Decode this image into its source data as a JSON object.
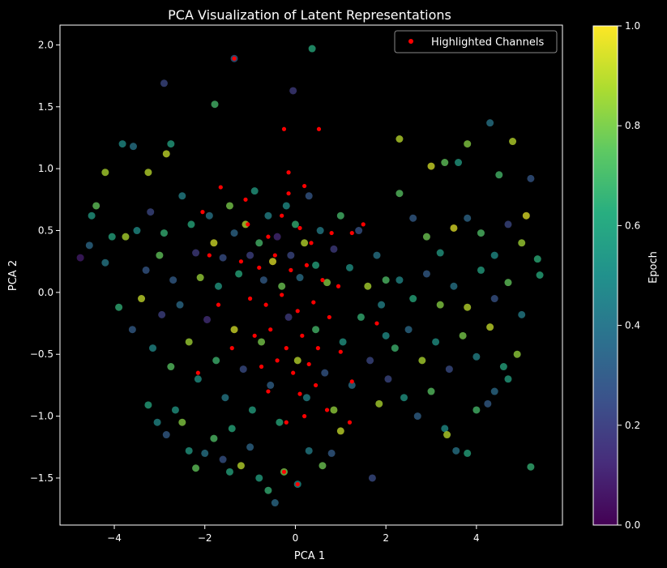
{
  "chart_data": {
    "type": "scatter",
    "title": "PCA Visualization of Latent Representations",
    "xlabel": "PCA 1",
    "ylabel": "PCA 2",
    "xlim": [
      -5.2,
      5.9
    ],
    "ylim": [
      -1.88,
      2.16
    ],
    "xticks": [
      -4,
      -2,
      0,
      2,
      4
    ],
    "xtick_labels": [
      "−4",
      "−2",
      "0",
      "2",
      "4"
    ],
    "yticks": [
      -1.5,
      -1.0,
      -0.5,
      0.0,
      0.5,
      1.0,
      1.5,
      2.0
    ],
    "ytick_labels": [
      "−1.5",
      "−1.0",
      "−0.5",
      "0.0",
      "0.5",
      "1.0",
      "1.5",
      "2.0"
    ],
    "grid": false,
    "legend": {
      "position": "top-right",
      "entries": [
        "Highlighted Channels"
      ]
    },
    "colorbar": {
      "label": "Epoch",
      "range": [
        0.0,
        1.0
      ],
      "ticks": [
        0.0,
        0.2,
        0.4,
        0.6,
        0.8,
        1.0
      ],
      "tick_labels": [
        "0.0",
        "0.2",
        "0.4",
        "0.6",
        "0.8",
        "1.0"
      ],
      "colormap": "viridis"
    },
    "series": [
      {
        "name": "Epoch",
        "kind": "colored_points",
        "points": [
          [
            -1.35,
            1.89,
            0.3
          ],
          [
            0.37,
            1.97,
            0.62
          ],
          [
            -2.9,
            1.69,
            0.22
          ],
          [
            -0.05,
            1.63,
            0.18
          ],
          [
            -1.78,
            1.52,
            0.7
          ],
          [
            -3.82,
            1.2,
            0.5
          ],
          [
            -3.58,
            1.18,
            0.4
          ],
          [
            -2.75,
            1.2,
            0.58
          ],
          [
            -2.85,
            1.12,
            0.92
          ],
          [
            -3.25,
            0.97,
            0.9
          ],
          [
            -4.2,
            0.97,
            0.88
          ],
          [
            -4.4,
            0.7,
            0.76
          ],
          [
            -4.5,
            0.62,
            0.55
          ],
          [
            -4.75,
            0.28,
            0.08
          ],
          [
            -4.55,
            0.38,
            0.35
          ],
          [
            -4.2,
            0.24,
            0.42
          ],
          [
            -4.05,
            0.45,
            0.6
          ],
          [
            -3.75,
            0.45,
            0.88
          ],
          [
            -3.5,
            0.5,
            0.5
          ],
          [
            -3.3,
            0.18,
            0.28
          ],
          [
            -3.2,
            0.65,
            0.22
          ],
          [
            -3.0,
            0.3,
            0.76
          ],
          [
            -2.9,
            0.48,
            0.66
          ],
          [
            -2.7,
            0.1,
            0.3
          ],
          [
            -2.5,
            0.78,
            0.45
          ],
          [
            -2.3,
            0.55,
            0.62
          ],
          [
            -2.2,
            0.32,
            0.18
          ],
          [
            -2.1,
            0.12,
            0.85
          ],
          [
            -1.9,
            0.62,
            0.4
          ],
          [
            -1.8,
            0.4,
            0.94
          ],
          [
            -1.7,
            0.05,
            0.55
          ],
          [
            -1.6,
            0.28,
            0.25
          ],
          [
            -1.45,
            0.7,
            0.8
          ],
          [
            -1.35,
            0.48,
            0.34
          ],
          [
            -1.25,
            0.15,
            0.62
          ],
          [
            -1.1,
            0.55,
            0.9
          ],
          [
            -1.0,
            0.3,
            0.2
          ],
          [
            -0.9,
            0.82,
            0.56
          ],
          [
            -0.8,
            0.4,
            0.7
          ],
          [
            -0.7,
            0.1,
            0.3
          ],
          [
            -0.6,
            0.62,
            0.46
          ],
          [
            -0.5,
            0.25,
            0.96
          ],
          [
            -0.4,
            0.45,
            0.12
          ],
          [
            -0.3,
            0.05,
            0.78
          ],
          [
            -0.2,
            0.7,
            0.5
          ],
          [
            -0.1,
            0.3,
            0.22
          ],
          [
            0.0,
            0.55,
            0.66
          ],
          [
            0.1,
            0.12,
            0.38
          ],
          [
            0.2,
            0.4,
            0.9
          ],
          [
            0.3,
            0.78,
            0.28
          ],
          [
            0.45,
            0.22,
            0.6
          ],
          [
            0.55,
            0.5,
            0.44
          ],
          [
            0.7,
            0.08,
            0.82
          ],
          [
            0.85,
            0.35,
            0.18
          ],
          [
            1.0,
            0.62,
            0.7
          ],
          [
            1.2,
            0.2,
            0.52
          ],
          [
            1.4,
            0.5,
            0.26
          ],
          [
            1.6,
            0.05,
            0.88
          ],
          [
            1.8,
            0.3,
            0.4
          ],
          [
            2.0,
            0.1,
            0.72
          ],
          [
            -3.9,
            -0.12,
            0.65
          ],
          [
            -3.6,
            -0.3,
            0.3
          ],
          [
            -3.4,
            -0.05,
            0.92
          ],
          [
            -3.15,
            -0.45,
            0.48
          ],
          [
            -2.95,
            -0.18,
            0.2
          ],
          [
            -2.75,
            -0.6,
            0.74
          ],
          [
            -2.55,
            -0.1,
            0.36
          ],
          [
            -2.35,
            -0.4,
            0.86
          ],
          [
            -2.15,
            -0.7,
            0.52
          ],
          [
            -1.95,
            -0.22,
            0.14
          ],
          [
            -1.75,
            -0.55,
            0.68
          ],
          [
            -1.55,
            -0.85,
            0.42
          ],
          [
            -1.35,
            -0.3,
            0.94
          ],
          [
            -1.15,
            -0.62,
            0.24
          ],
          [
            -0.95,
            -0.95,
            0.58
          ],
          [
            -0.75,
            -0.4,
            0.8
          ],
          [
            -0.55,
            -0.75,
            0.32
          ],
          [
            -0.35,
            -1.05,
            0.62
          ],
          [
            -0.15,
            -0.2,
            0.18
          ],
          [
            0.05,
            -0.55,
            0.9
          ],
          [
            0.25,
            -0.85,
            0.46
          ],
          [
            0.45,
            -0.3,
            0.7
          ],
          [
            0.65,
            -0.65,
            0.28
          ],
          [
            0.85,
            -0.95,
            0.84
          ],
          [
            1.05,
            -0.4,
            0.54
          ],
          [
            1.25,
            -0.75,
            0.38
          ],
          [
            1.45,
            -0.2,
            0.66
          ],
          [
            1.65,
            -0.55,
            0.22
          ],
          [
            1.85,
            -0.9,
            0.88
          ],
          [
            2.0,
            -0.35,
            0.5
          ],
          [
            -3.25,
            -0.91,
            0.6
          ],
          [
            -3.05,
            -1.05,
            0.48
          ],
          [
            -2.85,
            -1.15,
            0.3
          ],
          [
            -2.5,
            -1.05,
            0.82
          ],
          [
            -2.35,
            -1.28,
            0.55
          ],
          [
            -2.0,
            -1.3,
            0.4
          ],
          [
            -1.8,
            -1.18,
            0.72
          ],
          [
            -1.6,
            -1.35,
            0.26
          ],
          [
            -1.4,
            -1.1,
            0.62
          ],
          [
            -1.2,
            -1.4,
            0.9
          ],
          [
            -1.0,
            -1.25,
            0.34
          ],
          [
            -0.8,
            -1.5,
            0.58
          ],
          [
            -0.6,
            -1.6,
            0.66
          ],
          [
            -0.45,
            -1.7,
            0.36
          ],
          [
            -0.25,
            -1.45,
            0.8
          ],
          [
            0.05,
            -1.55,
            0.5
          ],
          [
            0.3,
            -1.28,
            0.44
          ],
          [
            0.6,
            -1.4,
            0.78
          ],
          [
            0.8,
            -1.3,
            0.3
          ],
          [
            1.0,
            -1.12,
            0.92
          ],
          [
            -2.2,
            -1.42,
            0.76
          ],
          [
            -1.45,
            -1.45,
            0.6
          ],
          [
            -2.65,
            -0.95,
            0.54
          ],
          [
            1.7,
            -1.5,
            0.24
          ],
          [
            2.3,
            1.24,
            0.9
          ],
          [
            2.3,
            0.8,
            0.74
          ],
          [
            3.0,
            1.02,
            0.94
          ],
          [
            3.3,
            1.05,
            0.76
          ],
          [
            3.6,
            1.05,
            0.56
          ],
          [
            3.8,
            1.2,
            0.82
          ],
          [
            4.3,
            1.37,
            0.4
          ],
          [
            4.8,
            1.22,
            0.9
          ],
          [
            4.5,
            0.95,
            0.7
          ],
          [
            5.2,
            0.92,
            0.28
          ],
          [
            2.6,
            0.6,
            0.3
          ],
          [
            2.9,
            0.45,
            0.78
          ],
          [
            3.2,
            0.32,
            0.55
          ],
          [
            3.5,
            0.52,
            0.96
          ],
          [
            3.8,
            0.6,
            0.34
          ],
          [
            4.1,
            0.48,
            0.72
          ],
          [
            4.4,
            0.3,
            0.5
          ],
          [
            4.7,
            0.55,
            0.22
          ],
          [
            5.0,
            0.4,
            0.86
          ],
          [
            5.35,
            0.27,
            0.64
          ],
          [
            5.4,
            0.14,
            0.62
          ],
          [
            2.3,
            0.1,
            0.48
          ],
          [
            2.6,
            -0.05,
            0.62
          ],
          [
            2.9,
            0.15,
            0.3
          ],
          [
            3.2,
            -0.1,
            0.82
          ],
          [
            3.5,
            0.05,
            0.4
          ],
          [
            3.8,
            -0.12,
            0.9
          ],
          [
            4.1,
            0.18,
            0.58
          ],
          [
            4.4,
            -0.05,
            0.26
          ],
          [
            4.7,
            0.08,
            0.76
          ],
          [
            5.0,
            -0.18,
            0.44
          ],
          [
            2.2,
            -0.45,
            0.68
          ],
          [
            2.5,
            -0.3,
            0.36
          ],
          [
            2.8,
            -0.55,
            0.88
          ],
          [
            3.1,
            -0.4,
            0.52
          ],
          [
            3.4,
            -0.62,
            0.24
          ],
          [
            3.7,
            -0.35,
            0.8
          ],
          [
            4.0,
            -0.52,
            0.46
          ],
          [
            4.3,
            -0.28,
            0.92
          ],
          [
            4.6,
            -0.6,
            0.6
          ],
          [
            4.9,
            -0.5,
            0.84
          ],
          [
            2.4,
            -0.85,
            0.54
          ],
          [
            2.7,
            -1.0,
            0.32
          ],
          [
            3.0,
            -0.8,
            0.74
          ],
          [
            3.3,
            -1.1,
            0.5
          ],
          [
            3.55,
            -1.28,
            0.4
          ],
          [
            3.8,
            -1.3,
            0.6
          ],
          [
            3.35,
            -1.15,
            0.9
          ],
          [
            4.0,
            -0.95,
            0.7
          ],
          [
            4.4,
            -0.8,
            0.36
          ],
          [
            4.7,
            -0.7,
            0.58
          ],
          [
            5.2,
            -1.41,
            0.66
          ],
          [
            4.25,
            -0.9,
            0.3
          ],
          [
            2.05,
            -0.7,
            0.22
          ],
          [
            1.9,
            -0.1,
            0.46
          ],
          [
            5.1,
            0.62,
            0.96
          ]
        ]
      },
      {
        "name": "Highlighted Channels",
        "kind": "legend_points",
        "color": "#ff0000",
        "points": [
          [
            -1.35,
            1.89
          ],
          [
            0.52,
            1.32
          ],
          [
            -0.25,
            1.32
          ],
          [
            -0.15,
            0.97
          ],
          [
            0.2,
            0.86
          ],
          [
            -0.15,
            0.8
          ],
          [
            -1.65,
            0.85
          ],
          [
            -1.05,
            0.55
          ],
          [
            -0.6,
            0.45
          ],
          [
            -0.3,
            0.62
          ],
          [
            0.1,
            0.52
          ],
          [
            0.35,
            0.4
          ],
          [
            0.8,
            0.48
          ],
          [
            -1.2,
            0.25
          ],
          [
            -0.8,
            0.2
          ],
          [
            -0.45,
            0.3
          ],
          [
            -0.1,
            0.18
          ],
          [
            0.25,
            0.22
          ],
          [
            0.6,
            0.1
          ],
          [
            0.95,
            0.05
          ],
          [
            -1.0,
            -0.05
          ],
          [
            -0.65,
            -0.1
          ],
          [
            -0.3,
            -0.02
          ],
          [
            0.05,
            -0.15
          ],
          [
            0.4,
            -0.08
          ],
          [
            0.75,
            -0.2
          ],
          [
            -0.9,
            -0.35
          ],
          [
            -0.55,
            -0.3
          ],
          [
            -0.2,
            -0.45
          ],
          [
            0.15,
            -0.35
          ],
          [
            0.5,
            -0.45
          ],
          [
            -0.75,
            -0.6
          ],
          [
            -0.4,
            -0.55
          ],
          [
            -0.05,
            -0.65
          ],
          [
            0.3,
            -0.58
          ],
          [
            -0.6,
            -0.8
          ],
          [
            0.1,
            -0.82
          ],
          [
            0.45,
            -0.75
          ],
          [
            -0.2,
            -1.05
          ],
          [
            0.2,
            -1.0
          ],
          [
            -0.25,
            -1.45
          ],
          [
            0.05,
            -1.55
          ],
          [
            1.2,
            -1.05
          ],
          [
            1.25,
            -0.72
          ],
          [
            1.0,
            -0.48
          ],
          [
            1.8,
            -0.25
          ],
          [
            -2.15,
            -0.65
          ],
          [
            -1.4,
            -0.45
          ],
          [
            -1.7,
            -0.1
          ],
          [
            -1.9,
            0.3
          ],
          [
            -2.05,
            0.65
          ],
          [
            1.25,
            0.48
          ],
          [
            1.5,
            0.55
          ],
          [
            -1.1,
            0.75
          ],
          [
            0.7,
            -0.95
          ]
        ]
      }
    ]
  }
}
